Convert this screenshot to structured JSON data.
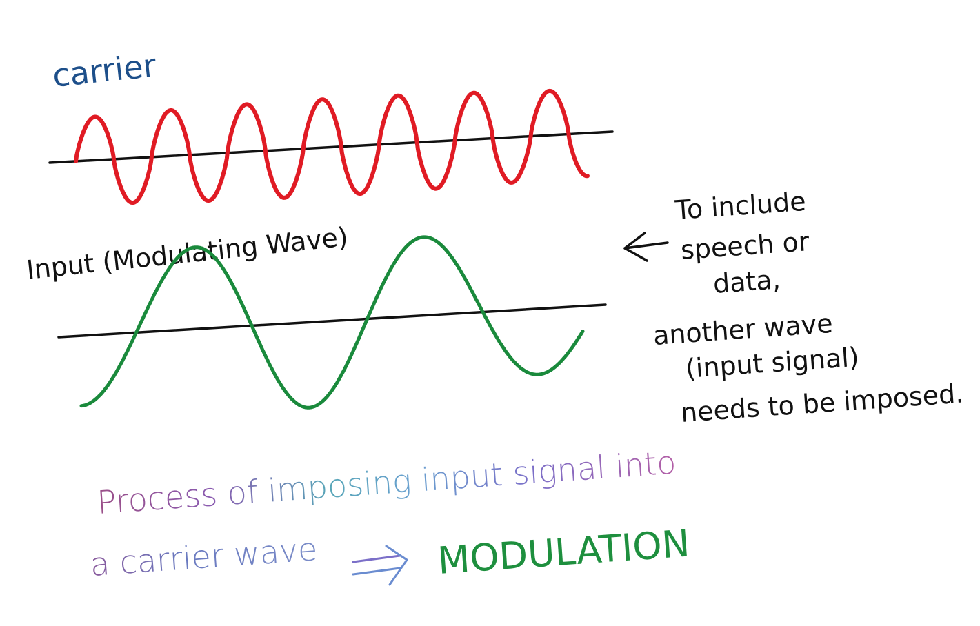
{
  "labels": {
    "carrier": "carrier",
    "input": "Input (Modulating Wave)"
  },
  "note": {
    "lines": [
      "To include",
      "speech or",
      "data,",
      "another wave",
      "(input signal)",
      "needs to be imposed."
    ]
  },
  "caption": {
    "line1": "Process of imposing input signal into",
    "line2": "a carrier wave",
    "result": "MODULATION"
  },
  "colors": {
    "carrier_wave": "#e01b24",
    "carrier_label": "#1d4f8a",
    "input_wave": "#1a8a3c",
    "axis": "#111111",
    "note_text": "#111111",
    "result": "#1e8f3e",
    "caption_gradient": [
      "#a05a8c",
      "#8c5aa8",
      "#5a8cc8",
      "#5ab4a0",
      "#7a78c8",
      "#b06aa8"
    ]
  }
}
